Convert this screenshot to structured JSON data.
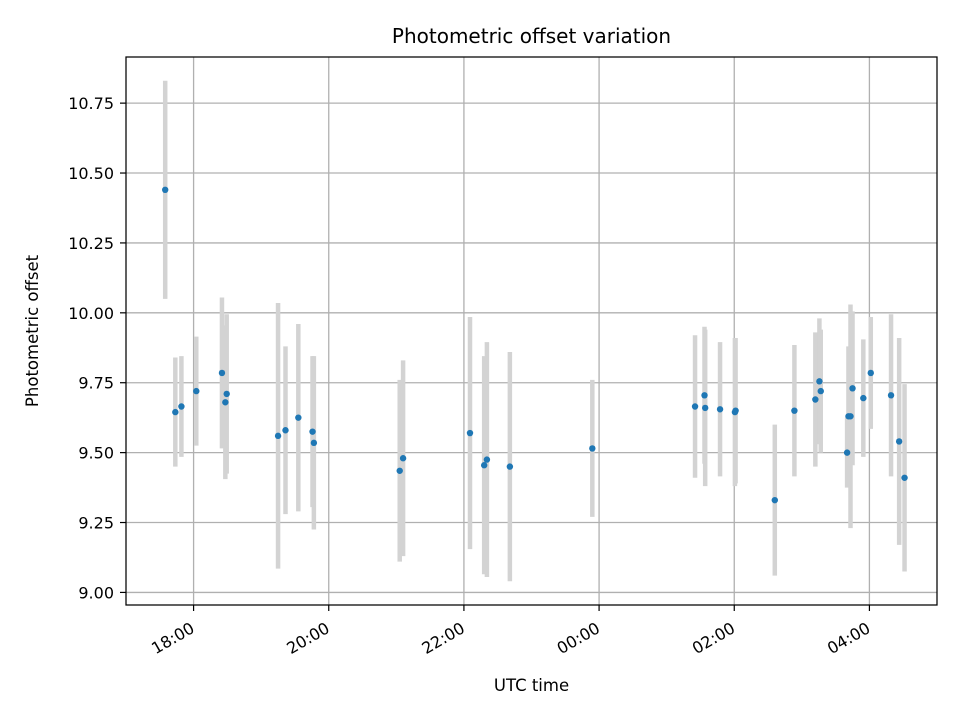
{
  "chart_data": {
    "type": "scatter",
    "title": "Photometric offset variation",
    "xlabel": "UTC time",
    "ylabel": "Photometric offset",
    "x_is_time": true,
    "x_unit": "hours since 00:00 UTC (continuing past midnight)",
    "xlim": [
      17.0,
      29.0
    ],
    "ylim": [
      8.955,
      10.915
    ],
    "grid": true,
    "x_ticks": [
      {
        "value": 18,
        "label": "18:00"
      },
      {
        "value": 20,
        "label": "20:00"
      },
      {
        "value": 22,
        "label": "22:00"
      },
      {
        "value": 24,
        "label": "00:00"
      },
      {
        "value": 26,
        "label": "02:00"
      },
      {
        "value": 28,
        "label": "04:00"
      }
    ],
    "y_ticks": [
      {
        "value": 9.0,
        "label": "9.00"
      },
      {
        "value": 9.25,
        "label": "9.25"
      },
      {
        "value": 9.5,
        "label": "9.50"
      },
      {
        "value": 9.75,
        "label": "9.75"
      },
      {
        "value": 10.0,
        "label": "10.00"
      },
      {
        "value": 10.25,
        "label": "10.25"
      },
      {
        "value": 10.5,
        "label": "10.50"
      },
      {
        "value": 10.75,
        "label": "10.75"
      }
    ],
    "colors": {
      "points": "#1f77b4",
      "errorbars": "#d3d3d3",
      "grid": "#b0b0b0",
      "axes": "#000000"
    },
    "points": [
      {
        "x": 17.58,
        "y": 10.44,
        "yerr": 0.39
      },
      {
        "x": 17.73,
        "y": 9.645,
        "yerr": 0.195
      },
      {
        "x": 17.82,
        "y": 9.665,
        "yerr": 0.18
      },
      {
        "x": 18.04,
        "y": 9.72,
        "yerr": 0.195
      },
      {
        "x": 18.42,
        "y": 9.785,
        "yerr": 0.27
      },
      {
        "x": 18.47,
        "y": 9.68,
        "yerr": 0.275
      },
      {
        "x": 18.49,
        "y": 9.71,
        "yerr": 0.285
      },
      {
        "x": 19.25,
        "y": 9.56,
        "yerr": 0.475
      },
      {
        "x": 19.36,
        "y": 9.58,
        "yerr": 0.3
      },
      {
        "x": 19.55,
        "y": 9.625,
        "yerr": 0.335
      },
      {
        "x": 19.76,
        "y": 9.575,
        "yerr": 0.27
      },
      {
        "x": 19.78,
        "y": 9.535,
        "yerr": 0.31
      },
      {
        "x": 21.05,
        "y": 9.435,
        "yerr": 0.325
      },
      {
        "x": 21.1,
        "y": 9.48,
        "yerr": 0.35
      },
      {
        "x": 22.09,
        "y": 9.57,
        "yerr": 0.415
      },
      {
        "x": 22.3,
        "y": 9.455,
        "yerr": 0.39
      },
      {
        "x": 22.34,
        "y": 9.475,
        "yerr": 0.42
      },
      {
        "x": 22.68,
        "y": 9.45,
        "yerr": 0.41
      },
      {
        "x": 23.9,
        "y": 9.515,
        "yerr": 0.245
      },
      {
        "x": 25.42,
        "y": 9.665,
        "yerr": 0.255
      },
      {
        "x": 25.56,
        "y": 9.705,
        "yerr": 0.245
      },
      {
        "x": 25.57,
        "y": 9.66,
        "yerr": 0.28
      },
      {
        "x": 25.79,
        "y": 9.655,
        "yerr": 0.24
      },
      {
        "x": 26.01,
        "y": 9.645,
        "yerr": 0.265
      },
      {
        "x": 26.02,
        "y": 9.65,
        "yerr": 0.26
      },
      {
        "x": 26.6,
        "y": 9.33,
        "yerr": 0.27
      },
      {
        "x": 26.89,
        "y": 9.65,
        "yerr": 0.235
      },
      {
        "x": 27.2,
        "y": 9.69,
        "yerr": 0.24
      },
      {
        "x": 27.26,
        "y": 9.755,
        "yerr": 0.225
      },
      {
        "x": 27.28,
        "y": 9.72,
        "yerr": 0.22
      },
      {
        "x": 27.67,
        "y": 9.5,
        "yerr": 0.125
      },
      {
        "x": 27.69,
        "y": 9.63,
        "yerr": 0.25
      },
      {
        "x": 27.72,
        "y": 9.63,
        "yerr": 0.4
      },
      {
        "x": 27.75,
        "y": 9.73,
        "yerr": 0.275
      },
      {
        "x": 27.91,
        "y": 9.695,
        "yerr": 0.21
      },
      {
        "x": 28.02,
        "y": 9.785,
        "yerr": 0.2
      },
      {
        "x": 28.32,
        "y": 9.705,
        "yerr": 0.29
      },
      {
        "x": 28.44,
        "y": 9.54,
        "yerr": 0.37
      },
      {
        "x": 28.52,
        "y": 9.41,
        "yerr": 0.335
      }
    ]
  }
}
